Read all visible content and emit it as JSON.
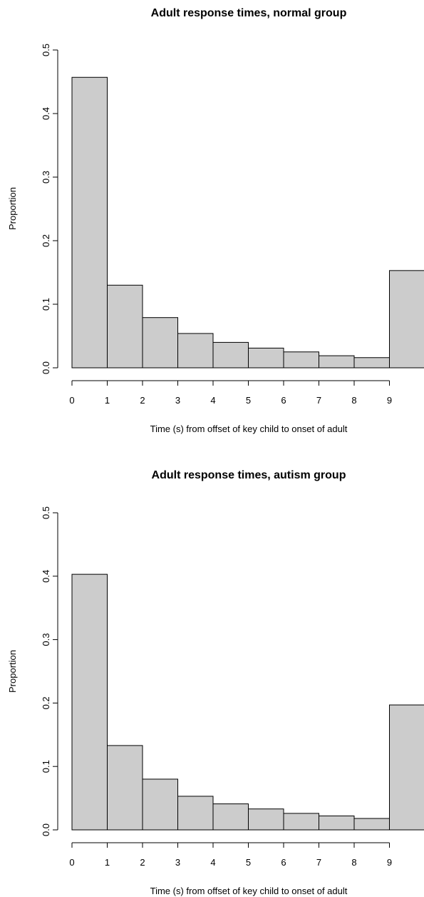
{
  "chart_data": [
    {
      "type": "bar",
      "title": "Adult response times, normal group",
      "xlabel": "Time (s) from offset of key child to onset of adult",
      "ylabel": "Proportion",
      "bin_edges": [
        0,
        1,
        2,
        3,
        4,
        5,
        6,
        7,
        8,
        9,
        10
      ],
      "values": [
        0.457,
        0.13,
        0.079,
        0.054,
        0.04,
        0.031,
        0.025,
        0.019,
        0.016,
        0.153
      ],
      "x_ticks": [
        "0",
        "1",
        "2",
        "3",
        "4",
        "5",
        "6",
        "7",
        "8",
        "9"
      ],
      "y_ticks": [
        "0.0",
        "0.1",
        "0.2",
        "0.3",
        "0.4",
        "0.5"
      ],
      "ylim": [
        0,
        0.5
      ],
      "grid": false,
      "bar_color": "#cccccc"
    },
    {
      "type": "bar",
      "title": "Adult response times, autism group",
      "xlabel": "Time (s) from offset of key child to onset of adult",
      "ylabel": "Proportion",
      "bin_edges": [
        0,
        1,
        2,
        3,
        4,
        5,
        6,
        7,
        8,
        9,
        10
      ],
      "values": [
        0.403,
        0.133,
        0.08,
        0.053,
        0.041,
        0.033,
        0.026,
        0.022,
        0.018,
        0.197
      ],
      "x_ticks": [
        "0",
        "1",
        "2",
        "3",
        "4",
        "5",
        "6",
        "7",
        "8",
        "9"
      ],
      "y_ticks": [
        "0.0",
        "0.1",
        "0.2",
        "0.3",
        "0.4",
        "0.5"
      ],
      "ylim": [
        0,
        0.5
      ],
      "grid": false,
      "bar_color": "#cccccc"
    }
  ]
}
